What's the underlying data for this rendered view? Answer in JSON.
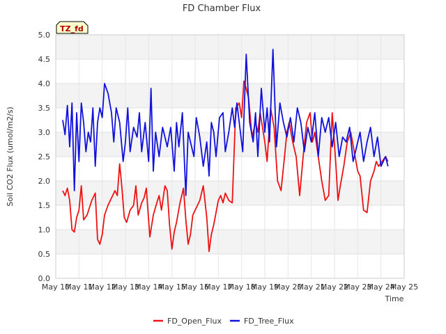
{
  "chart_data": {
    "type": "line",
    "title": "FD Chamber Flux",
    "xlabel": "Time",
    "ylabel": "Soil CO2 Flux (umol/m2/s)",
    "badge": "TZ_fd",
    "xlim": [
      0,
      15
    ],
    "ylim": [
      0,
      5
    ],
    "yticks": [
      "0.0",
      "0.5",
      "1.0",
      "1.5",
      "2.0",
      "2.5",
      "3.0",
      "3.5",
      "4.0",
      "4.5",
      "5.0"
    ],
    "xticks": [
      "May 10",
      "May 11",
      "May 12",
      "May 13",
      "May 14",
      "May 15",
      "May 16",
      "May 17",
      "May 18",
      "May 19",
      "May 20",
      "May 21",
      "May 22",
      "May 23",
      "May 24",
      "May 25"
    ],
    "legend_position": "bottom",
    "grid": true,
    "colors": {
      "FD_Open_Flux": "#ee1111",
      "FD_Tree_Flux": "#1111dd"
    },
    "series": [
      {
        "name": "FD_Open_Flux",
        "x": [
          0.3,
          0.4,
          0.5,
          0.6,
          0.7,
          0.8,
          0.9,
          1.0,
          1.1,
          1.2,
          1.35,
          1.45,
          1.55,
          1.7,
          1.8,
          1.9,
          2.0,
          2.1,
          2.25,
          2.4,
          2.55,
          2.65,
          2.75,
          2.85,
          2.95,
          3.05,
          3.2,
          3.35,
          3.45,
          3.55,
          3.7,
          3.8,
          3.9,
          4.05,
          4.2,
          4.35,
          4.45,
          4.55,
          4.7,
          4.8,
          4.9,
          5.0,
          5.1,
          5.2,
          5.35,
          5.5,
          5.6,
          5.7,
          5.8,
          5.9,
          6.05,
          6.2,
          6.35,
          6.5,
          6.6,
          6.7,
          6.8,
          6.9,
          7.0,
          7.1,
          7.2,
          7.3,
          7.45,
          7.6,
          7.75,
          7.9,
          8.0,
          8.1,
          8.2,
          8.3,
          8.45,
          8.6,
          8.7,
          8.8,
          8.9,
          9.0,
          9.1,
          9.25,
          9.4,
          9.55,
          9.7,
          9.85,
          9.95,
          10.05,
          10.2,
          10.35,
          10.5,
          10.65,
          10.8,
          10.95,
          11.05,
          11.15,
          11.3,
          11.45,
          11.6,
          11.75,
          11.9,
          12.05,
          12.15,
          12.25,
          12.4,
          12.55,
          12.7,
          12.85,
          13.0,
          13.1,
          13.25,
          13.4,
          13.55,
          13.7,
          13.8,
          13.9,
          14.05,
          14.2,
          14.3
        ],
        "y": [
          1.8,
          1.7,
          1.85,
          1.6,
          1.0,
          0.95,
          1.25,
          1.4,
          1.9,
          1.2,
          1.3,
          1.45,
          1.6,
          1.75,
          0.8,
          0.7,
          0.9,
          1.3,
          1.5,
          1.65,
          1.8,
          1.7,
          2.35,
          1.85,
          1.25,
          1.15,
          1.4,
          1.5,
          1.9,
          1.3,
          1.55,
          1.65,
          1.85,
          0.85,
          1.3,
          1.55,
          1.7,
          1.4,
          1.9,
          1.8,
          1.1,
          0.6,
          0.95,
          1.15,
          1.55,
          1.85,
          1.2,
          0.7,
          0.9,
          1.3,
          1.45,
          1.6,
          1.9,
          1.25,
          0.55,
          0.9,
          1.1,
          1.35,
          1.6,
          1.7,
          1.55,
          1.75,
          1.6,
          1.55,
          3.5,
          3.6,
          3.3,
          4.05,
          3.9,
          3.7,
          2.9,
          3.2,
          3.0,
          3.4,
          3.1,
          2.8,
          2.4,
          3.5,
          3.1,
          2.0,
          1.8,
          2.5,
          3.0,
          3.2,
          2.8,
          2.5,
          1.7,
          2.5,
          3.2,
          3.4,
          2.8,
          3.0,
          2.5,
          2.0,
          1.6,
          1.7,
          3.4,
          2.4,
          1.6,
          1.9,
          2.3,
          2.8,
          3.0,
          2.6,
          2.2,
          2.1,
          1.4,
          1.35,
          2.0,
          2.2,
          2.4,
          2.3,
          2.4,
          2.5,
          2.4
        ]
      },
      {
        "name": "FD_Tree_Flux",
        "x": [
          0.3,
          0.4,
          0.5,
          0.6,
          0.7,
          0.8,
          0.9,
          1.0,
          1.1,
          1.2,
          1.3,
          1.4,
          1.5,
          1.6,
          1.7,
          1.8,
          1.9,
          2.0,
          2.1,
          2.25,
          2.4,
          2.5,
          2.6,
          2.75,
          2.9,
          3.0,
          3.1,
          3.2,
          3.35,
          3.5,
          3.6,
          3.7,
          3.85,
          4.0,
          4.1,
          4.2,
          4.3,
          4.45,
          4.6,
          4.7,
          4.8,
          4.95,
          5.1,
          5.2,
          5.3,
          5.45,
          5.6,
          5.7,
          5.8,
          5.95,
          6.05,
          6.2,
          6.35,
          6.5,
          6.6,
          6.7,
          6.8,
          6.9,
          7.05,
          7.2,
          7.3,
          7.45,
          7.6,
          7.7,
          7.8,
          7.9,
          8.05,
          8.2,
          8.35,
          8.5,
          8.6,
          8.7,
          8.85,
          9.0,
          9.1,
          9.2,
          9.35,
          9.5,
          9.65,
          9.8,
          9.95,
          10.1,
          10.25,
          10.4,
          10.55,
          10.7,
          10.85,
          11.0,
          11.15,
          11.3,
          11.45,
          11.6,
          11.75,
          11.9,
          12.05,
          12.2,
          12.35,
          12.5,
          12.65,
          12.8,
          12.95,
          13.1,
          13.25,
          13.4,
          13.55,
          13.7,
          13.85,
          14.0,
          14.1,
          14.2,
          14.3
        ],
        "y": [
          3.25,
          2.95,
          3.55,
          2.7,
          3.6,
          1.8,
          3.4,
          2.4,
          3.6,
          3.2,
          2.6,
          3.0,
          2.8,
          3.5,
          2.3,
          3.2,
          3.5,
          3.3,
          4.0,
          3.8,
          3.4,
          2.8,
          3.5,
          3.2,
          2.4,
          2.8,
          3.5,
          2.6,
          3.1,
          2.9,
          3.4,
          2.6,
          3.2,
          2.4,
          3.9,
          2.2,
          3.0,
          2.5,
          3.1,
          2.9,
          2.7,
          3.1,
          2.2,
          3.2,
          2.7,
          3.4,
          1.7,
          3.0,
          2.8,
          2.5,
          3.3,
          2.9,
          2.3,
          2.8,
          2.1,
          3.2,
          3.0,
          2.5,
          3.3,
          3.4,
          2.6,
          3.0,
          3.5,
          3.1,
          3.6,
          3.2,
          2.6,
          4.6,
          3.2,
          2.8,
          3.4,
          2.5,
          3.9,
          3.0,
          3.5,
          2.8,
          4.7,
          2.7,
          3.6,
          3.2,
          2.9,
          3.3,
          2.8,
          3.5,
          3.2,
          2.6,
          3.1,
          2.8,
          3.4,
          2.5,
          3.3,
          3.0,
          3.3,
          2.7,
          3.2,
          2.5,
          2.9,
          2.8,
          3.1,
          2.4,
          2.7,
          3.0,
          2.4,
          2.8,
          3.1,
          2.5,
          2.9,
          2.3,
          2.4,
          2.5,
          2.3
        ]
      }
    ]
  }
}
